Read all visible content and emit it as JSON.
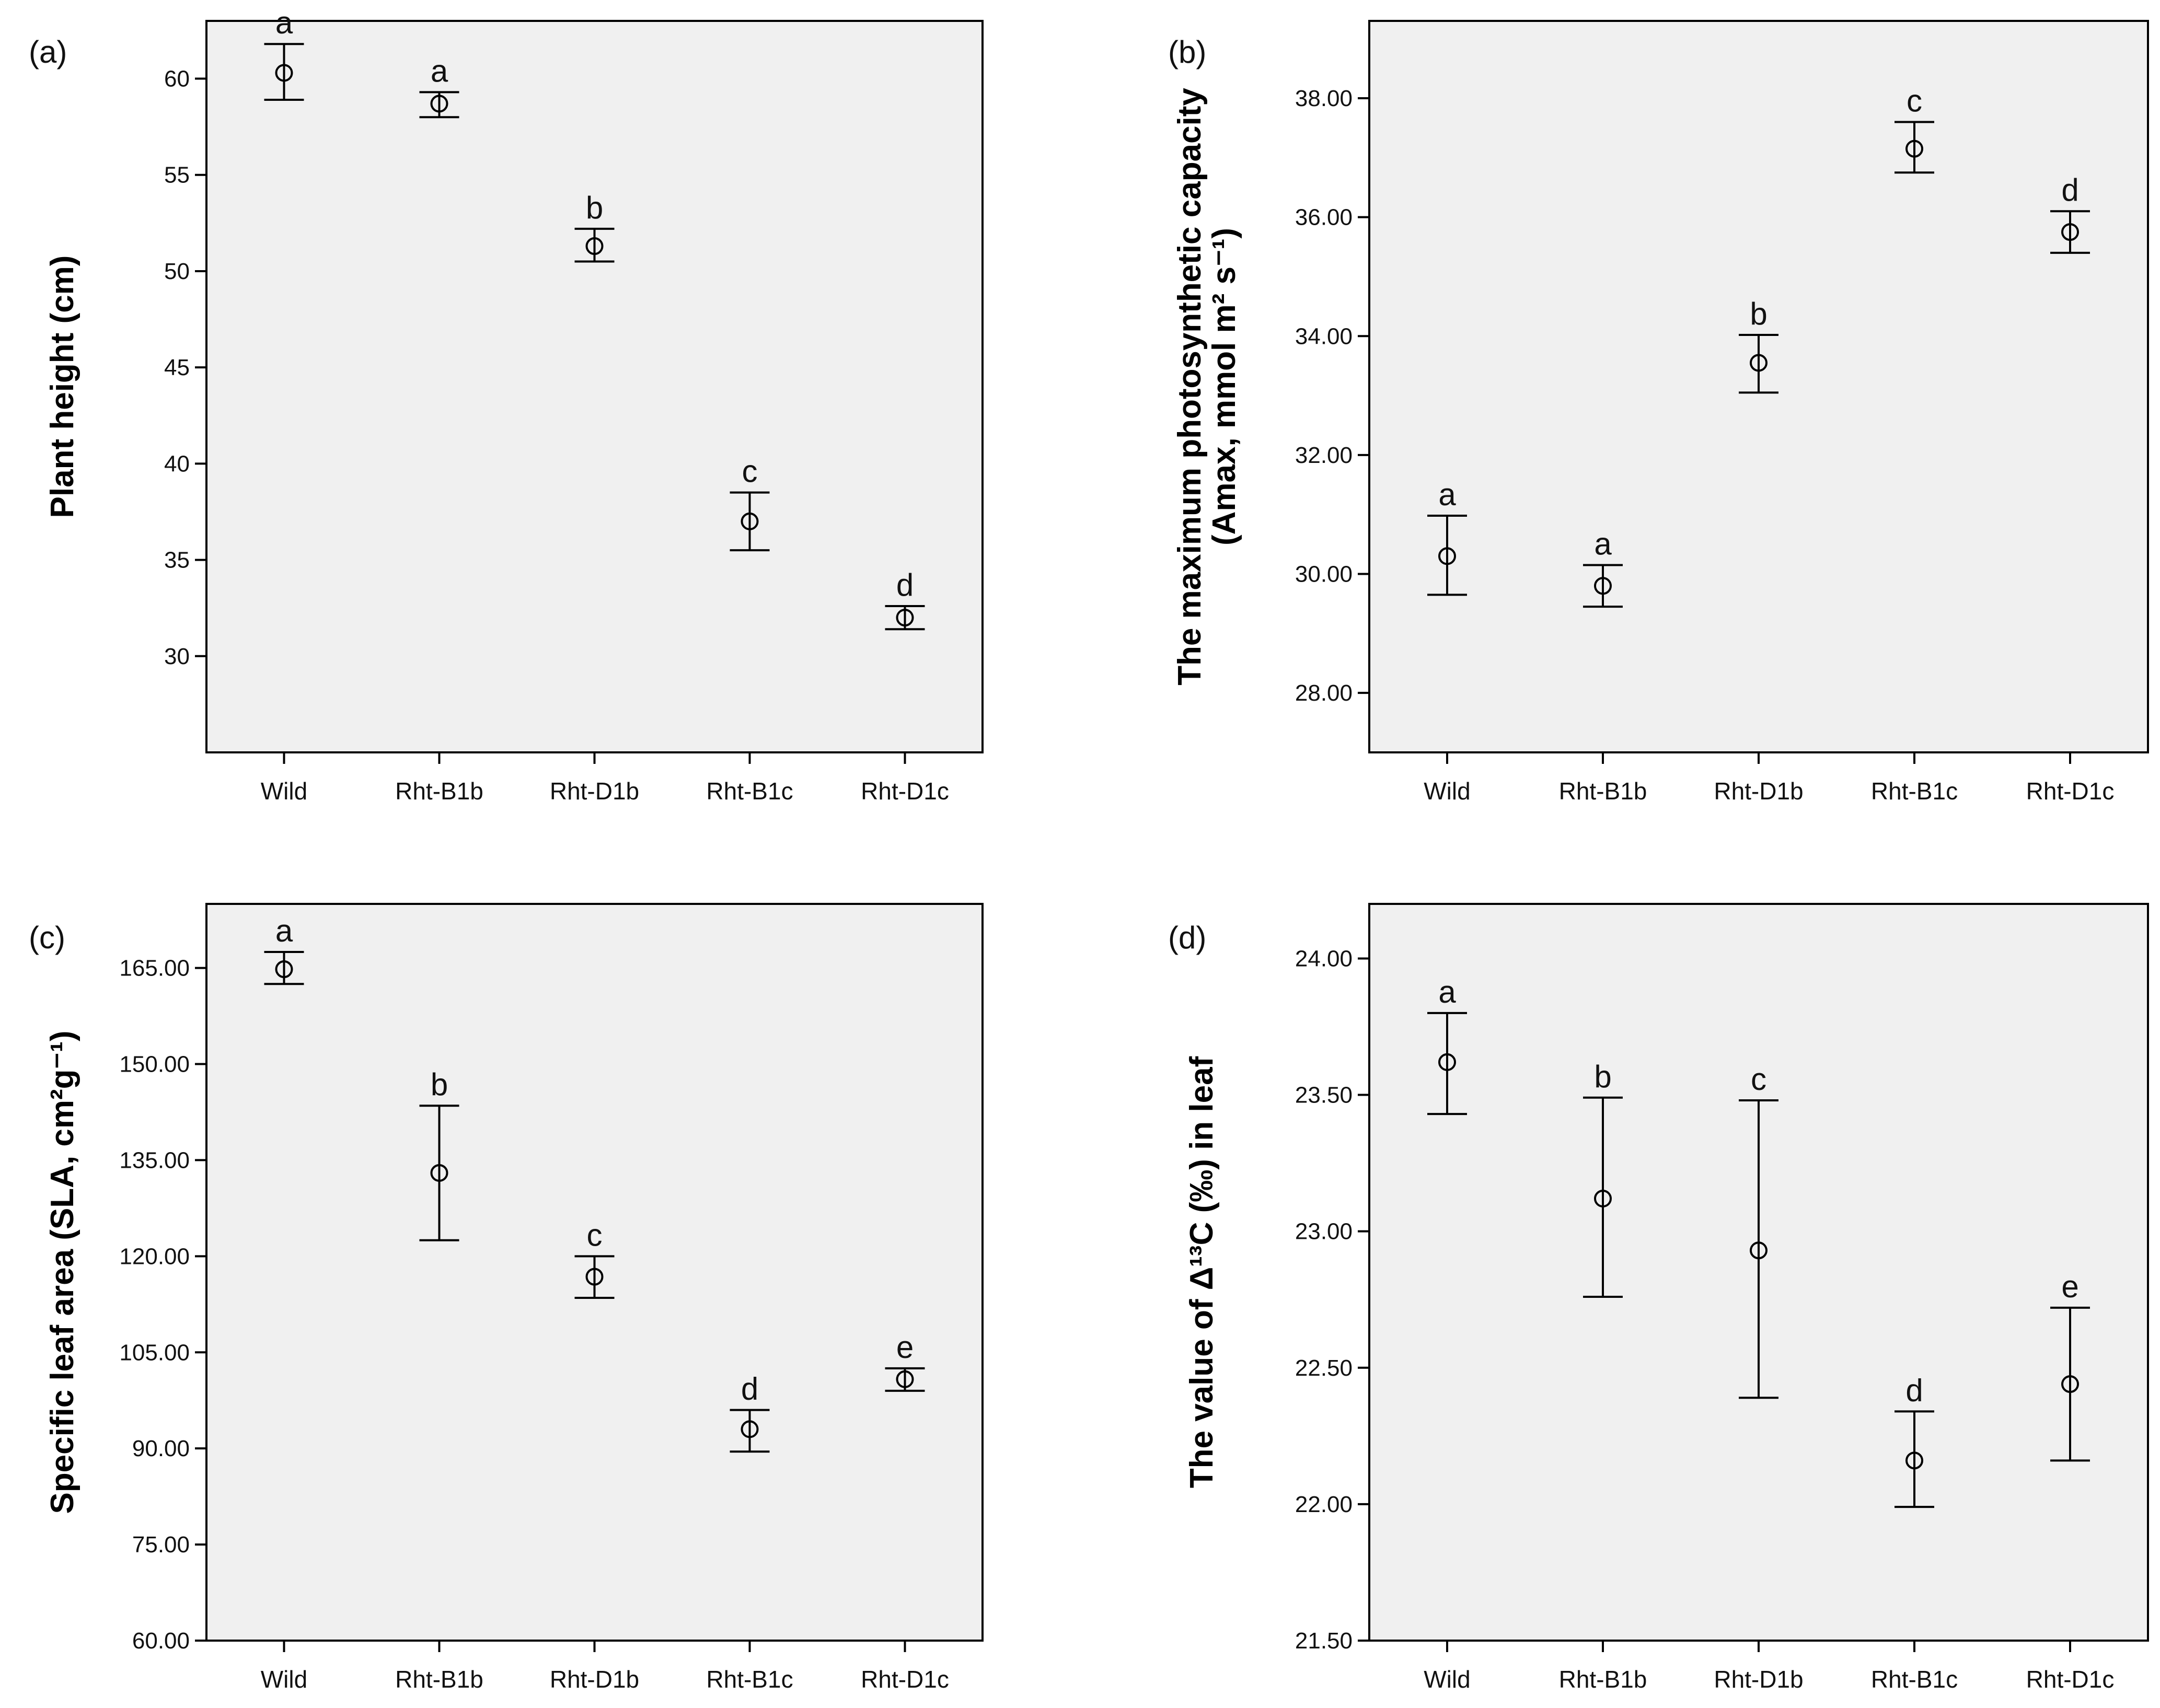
{
  "chart_data": [
    {
      "type": "scatter",
      "panel": "(a)",
      "categories": [
        "Wild",
        "Rht-B1b",
        "Rht-D1b",
        "Rht-B1c",
        "Rht-D1c"
      ],
      "means": [
        60.3,
        58.7,
        51.3,
        37.0,
        32.0
      ],
      "lower": [
        58.9,
        58.0,
        50.5,
        35.5,
        31.4
      ],
      "upper": [
        61.8,
        59.3,
        52.2,
        38.5,
        32.6
      ],
      "letters": [
        "a",
        "a",
        "b",
        "c",
        "d"
      ],
      "ylabel_lines": [
        "Plant height (cm)"
      ],
      "yticks": [
        "30",
        "35",
        "40",
        "45",
        "50",
        "55",
        "60"
      ],
      "ylim": [
        25,
        63
      ]
    },
    {
      "type": "scatter",
      "panel": "(b)",
      "categories": [
        "Wild",
        "Rht-B1b",
        "Rht-D1b",
        "Rht-B1c",
        "Rht-D1c"
      ],
      "means": [
        30.3,
        29.8,
        33.55,
        37.15,
        35.75
      ],
      "lower": [
        29.65,
        29.45,
        33.05,
        36.75,
        35.4
      ],
      "upper": [
        30.98,
        30.15,
        34.02,
        37.6,
        36.1
      ],
      "letters": [
        "a",
        "a",
        "b",
        "c",
        "d"
      ],
      "ylabel_lines": [
        "The maximum photosynthetic capacity",
        "(Amax, mmol m² s⁻¹)"
      ],
      "yticks": [
        "28.00",
        "30.00",
        "32.00",
        "34.00",
        "36.00",
        "38.00"
      ],
      "ylim": [
        27,
        39.3
      ]
    },
    {
      "type": "scatter",
      "panel": "(c)",
      "categories": [
        "Wild",
        "Rht-B1b",
        "Rht-D1b",
        "Rht-B1c",
        "Rht-D1c"
      ],
      "means": [
        164.8,
        133.0,
        116.8,
        93.0,
        100.8
      ],
      "lower": [
        162.5,
        122.5,
        113.5,
        89.5,
        99.0
      ],
      "upper": [
        167.5,
        143.5,
        120.0,
        96.0,
        102.5
      ],
      "letters": [
        "a",
        "b",
        "c",
        "d",
        "e"
      ],
      "ylabel_lines": [
        "Specific leaf area (SLA, cm²g⁻¹)"
      ],
      "yticks": [
        "60.00",
        "75.00",
        "90.00",
        "105.00",
        "120.00",
        "135.00",
        "150.00",
        "165.00"
      ],
      "ylim": [
        60,
        175
      ]
    },
    {
      "type": "scatter",
      "panel": "(d)",
      "categories": [
        "Wild",
        "Rht-B1b",
        "Rht-D1b",
        "Rht-B1c",
        "Rht-D1c"
      ],
      "means": [
        23.62,
        23.12,
        22.93,
        22.16,
        22.44
      ],
      "lower": [
        23.43,
        22.76,
        22.39,
        21.99,
        22.16
      ],
      "upper": [
        23.8,
        23.49,
        23.48,
        22.34,
        22.72
      ],
      "letters": [
        "a",
        "b",
        "c",
        "d",
        "e"
      ],
      "ylabel_lines": [
        "The value of Δ¹³C (‰) in leaf"
      ],
      "yticks": [
        "21.50",
        "22.00",
        "22.50",
        "23.00",
        "23.50",
        "24.00"
      ],
      "ylim": [
        21.5,
        24.2
      ]
    }
  ]
}
